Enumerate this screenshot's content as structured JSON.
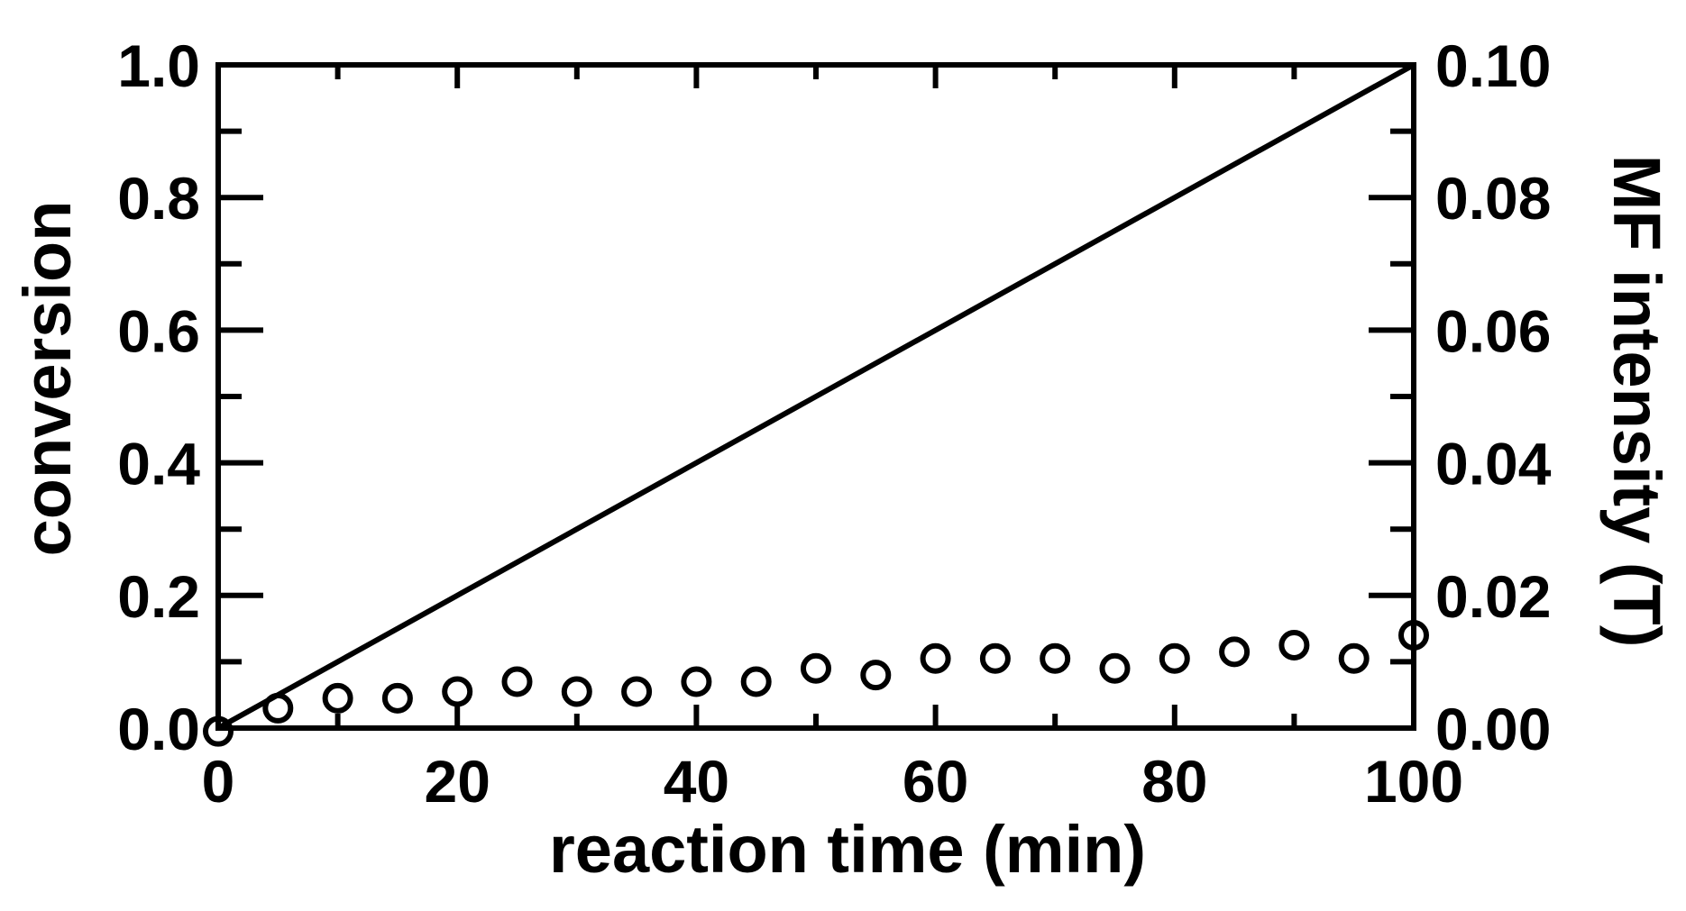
{
  "chart_data": {
    "type": "scatter",
    "xlabel": "reaction time (min)",
    "ylabel": "conversion",
    "y2label": "MF intensity (T)",
    "xlim": [
      0,
      100
    ],
    "ylim": [
      0,
      1.0
    ],
    "y2lim": [
      0,
      0.1
    ],
    "xticks": [
      "0",
      "20",
      "40",
      "60",
      "80",
      "100"
    ],
    "yticks": [
      "0.0",
      "0.2",
      "0.4",
      "0.6",
      "0.8",
      "1.0"
    ],
    "y2ticks": [
      "0.00",
      "0.02",
      "0.04",
      "0.06",
      "0.08",
      "0.10"
    ],
    "series": [
      {
        "axis": "left",
        "marker": "open-circle",
        "x": [
          0,
          5,
          10,
          15,
          20,
          25,
          30,
          35,
          40,
          45,
          50,
          55,
          60,
          65,
          70,
          75,
          80,
          85,
          90,
          95,
          100
        ],
        "y": [
          -0.005,
          0.03,
          0.045,
          0.045,
          0.055,
          0.07,
          0.055,
          0.055,
          0.07,
          0.07,
          0.09,
          0.08,
          0.105,
          0.105,
          0.105,
          0.09,
          0.105,
          0.115,
          0.125,
          0.105,
          0.14
        ]
      },
      {
        "axis": "right",
        "style": "solid-line",
        "x": [
          0,
          100
        ],
        "y": [
          0,
          0.1
        ]
      }
    ],
    "grid": false,
    "legend": "none",
    "colors": {
      "foreground": "#000000",
      "background": "#ffffff"
    }
  }
}
